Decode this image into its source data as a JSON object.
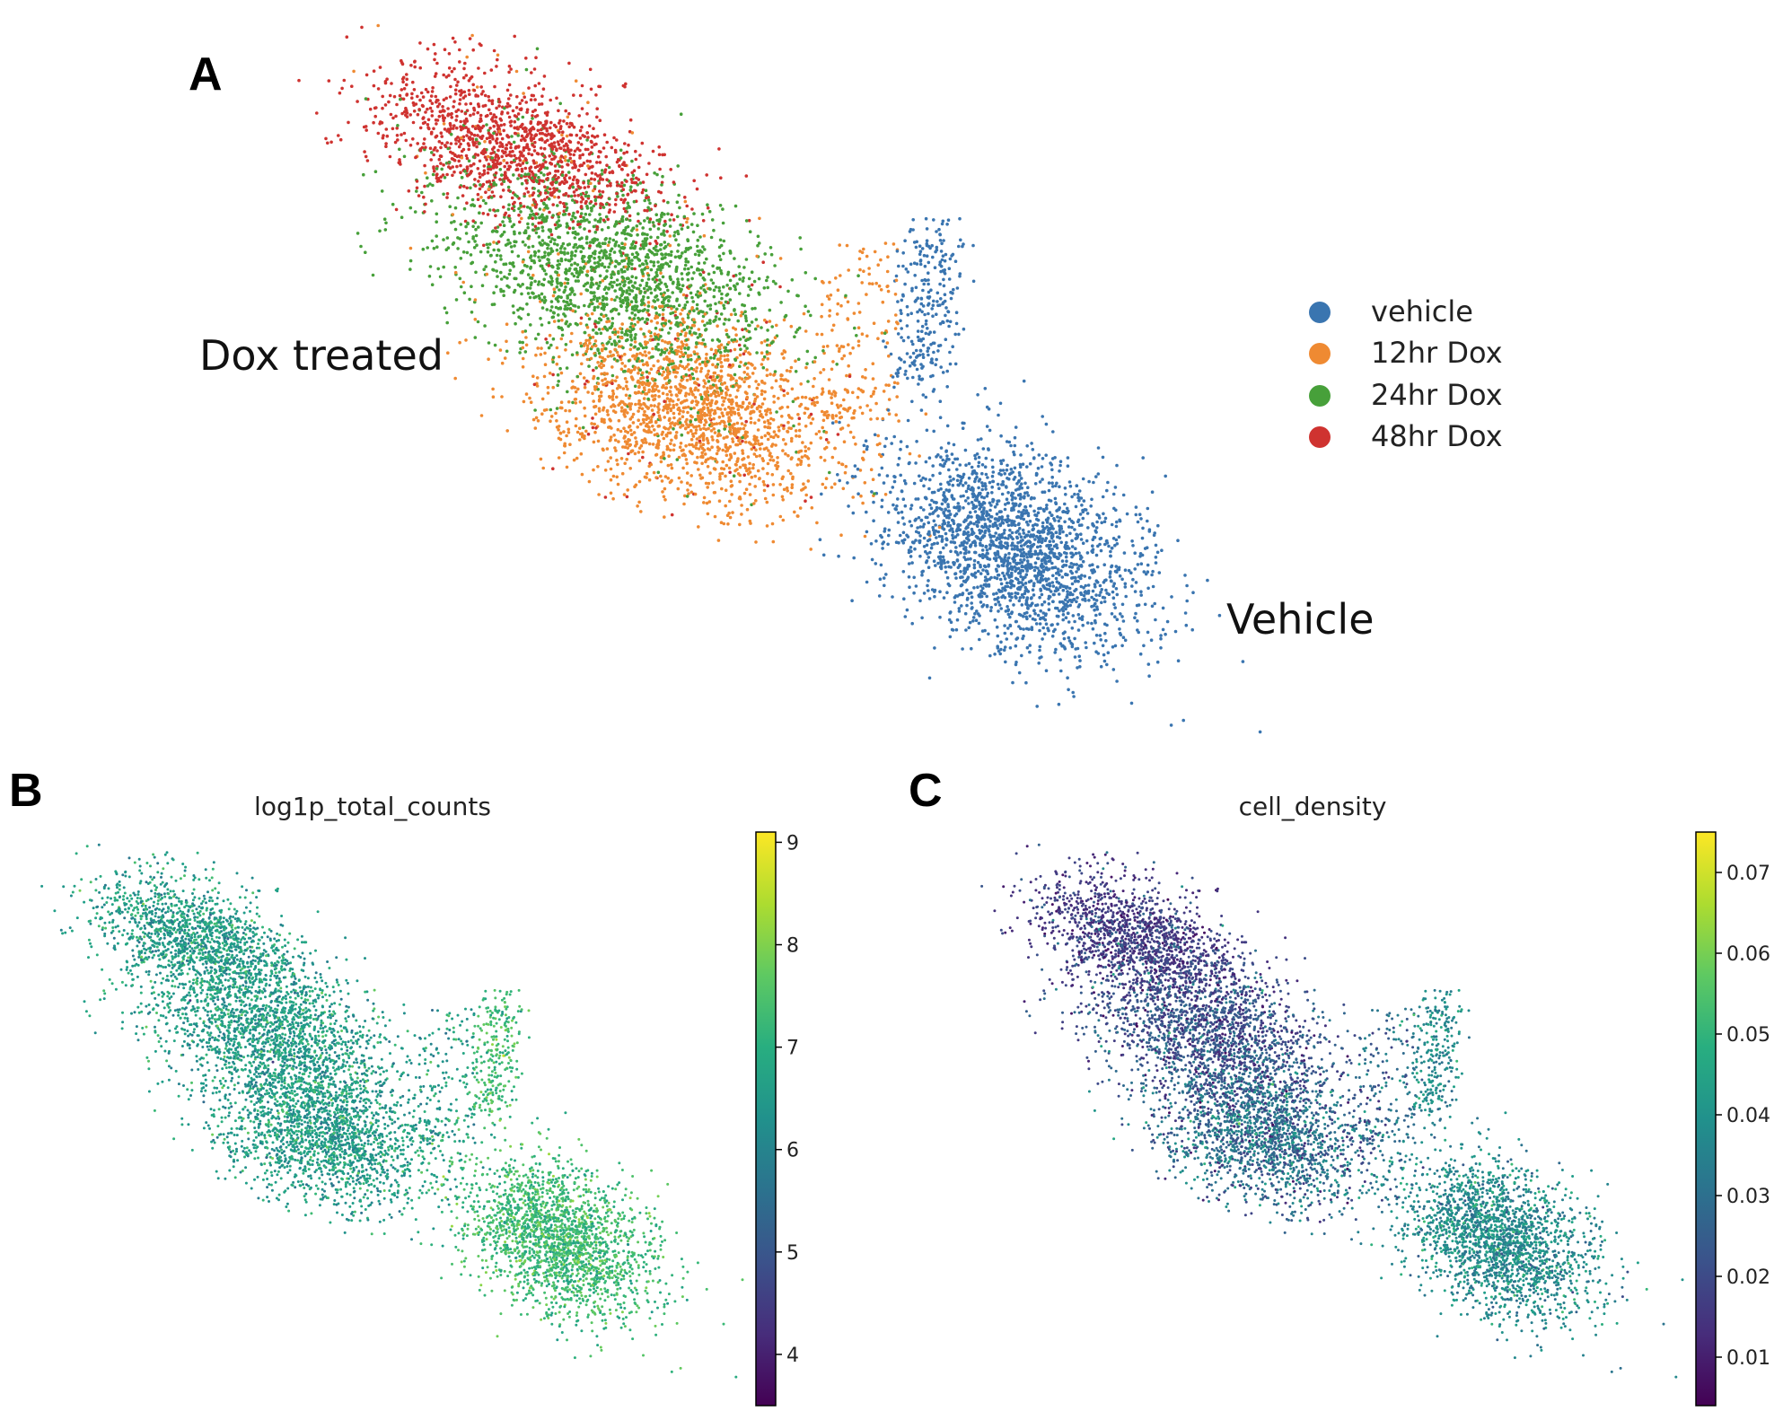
{
  "chart_data": [
    {
      "panel": "A",
      "type": "scatter",
      "annotations": [
        {
          "id": "dox",
          "text": "Dox treated"
        },
        {
          "id": "vehicle",
          "text": "Vehicle"
        }
      ],
      "legend": {
        "placement": "right",
        "entries": [
          {
            "label": "vehicle",
            "color": "#3a75b0"
          },
          {
            "label": "12hr Dox",
            "color": "#ef8a32"
          },
          {
            "label": "24hr Dox",
            "color": "#47a03a"
          },
          {
            "label": "48hr Dox",
            "color": "#cf3330"
          }
        ]
      },
      "grid": false,
      "axes_visible": false
    },
    {
      "panel": "B",
      "type": "scatter",
      "title": "log1p_total_counts",
      "colormap": "viridis",
      "colorbar": {
        "min": 3.5,
        "max": 9.1,
        "ticks": [
          4,
          5,
          6,
          7,
          8,
          9
        ]
      },
      "grid": false,
      "axes_visible": false
    },
    {
      "panel": "C",
      "type": "scatter",
      "title": "cell_density",
      "colormap": "viridis",
      "colorbar": {
        "min": 0.004,
        "max": 0.075,
        "ticks": [
          0.01,
          0.02,
          0.03,
          0.04,
          0.05,
          0.06,
          0.07
        ],
        "tick_labels": [
          "0.01",
          "0.02",
          "0.03",
          "0.04",
          "0.05",
          "0.06",
          "0.07"
        ]
      },
      "grid": false,
      "axes_visible": false
    }
  ]
}
